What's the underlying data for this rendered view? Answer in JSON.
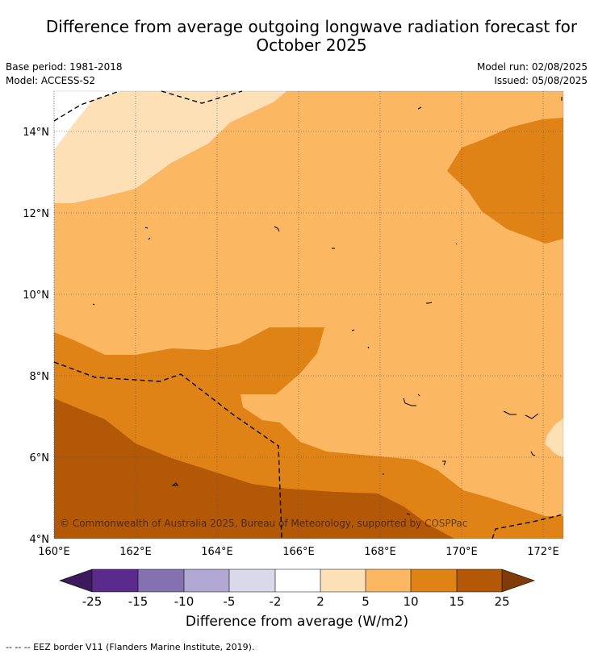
{
  "title_line1": "Difference from average outgoing longwave radiation forecast for",
  "title_line2": "October 2025",
  "base_period": "Base period: 1981-2018",
  "model": "Model: ACCESS-S2",
  "model_run": "Model run: 02/08/2025",
  "issued": "Issued: 05/08/2025",
  "copyright": "© Commonwealth of Australia 2025, Bureau of Meteorology, supported by COSPPac",
  "lon_ticks": [
    "160°E",
    "162°E",
    "164°E",
    "166°E",
    "168°E",
    "170°E",
    "172°E"
  ],
  "lat_ticks": [
    "4°N",
    "6°N",
    "8°N",
    "10°N",
    "12°N",
    "14°N"
  ],
  "colorbar": {
    "label": "Difference from average (W/m2)",
    "ticks": [
      "-25",
      "-15",
      "-10",
      "-5",
      "-2",
      "2",
      "5",
      "10",
      "15",
      "25"
    ],
    "colors": [
      "#3d1a5c",
      "#5a2a8c",
      "#8472b0",
      "#b1a9d3",
      "#d9d9eb",
      "#ffffff",
      "#fde0b6",
      "#fbb762",
      "#e08316",
      "#b35806",
      "#7f3b08"
    ]
  },
  "footnote": "--  --  -- EEZ border V11 (Flanders Marine Institute, 2019)."
}
